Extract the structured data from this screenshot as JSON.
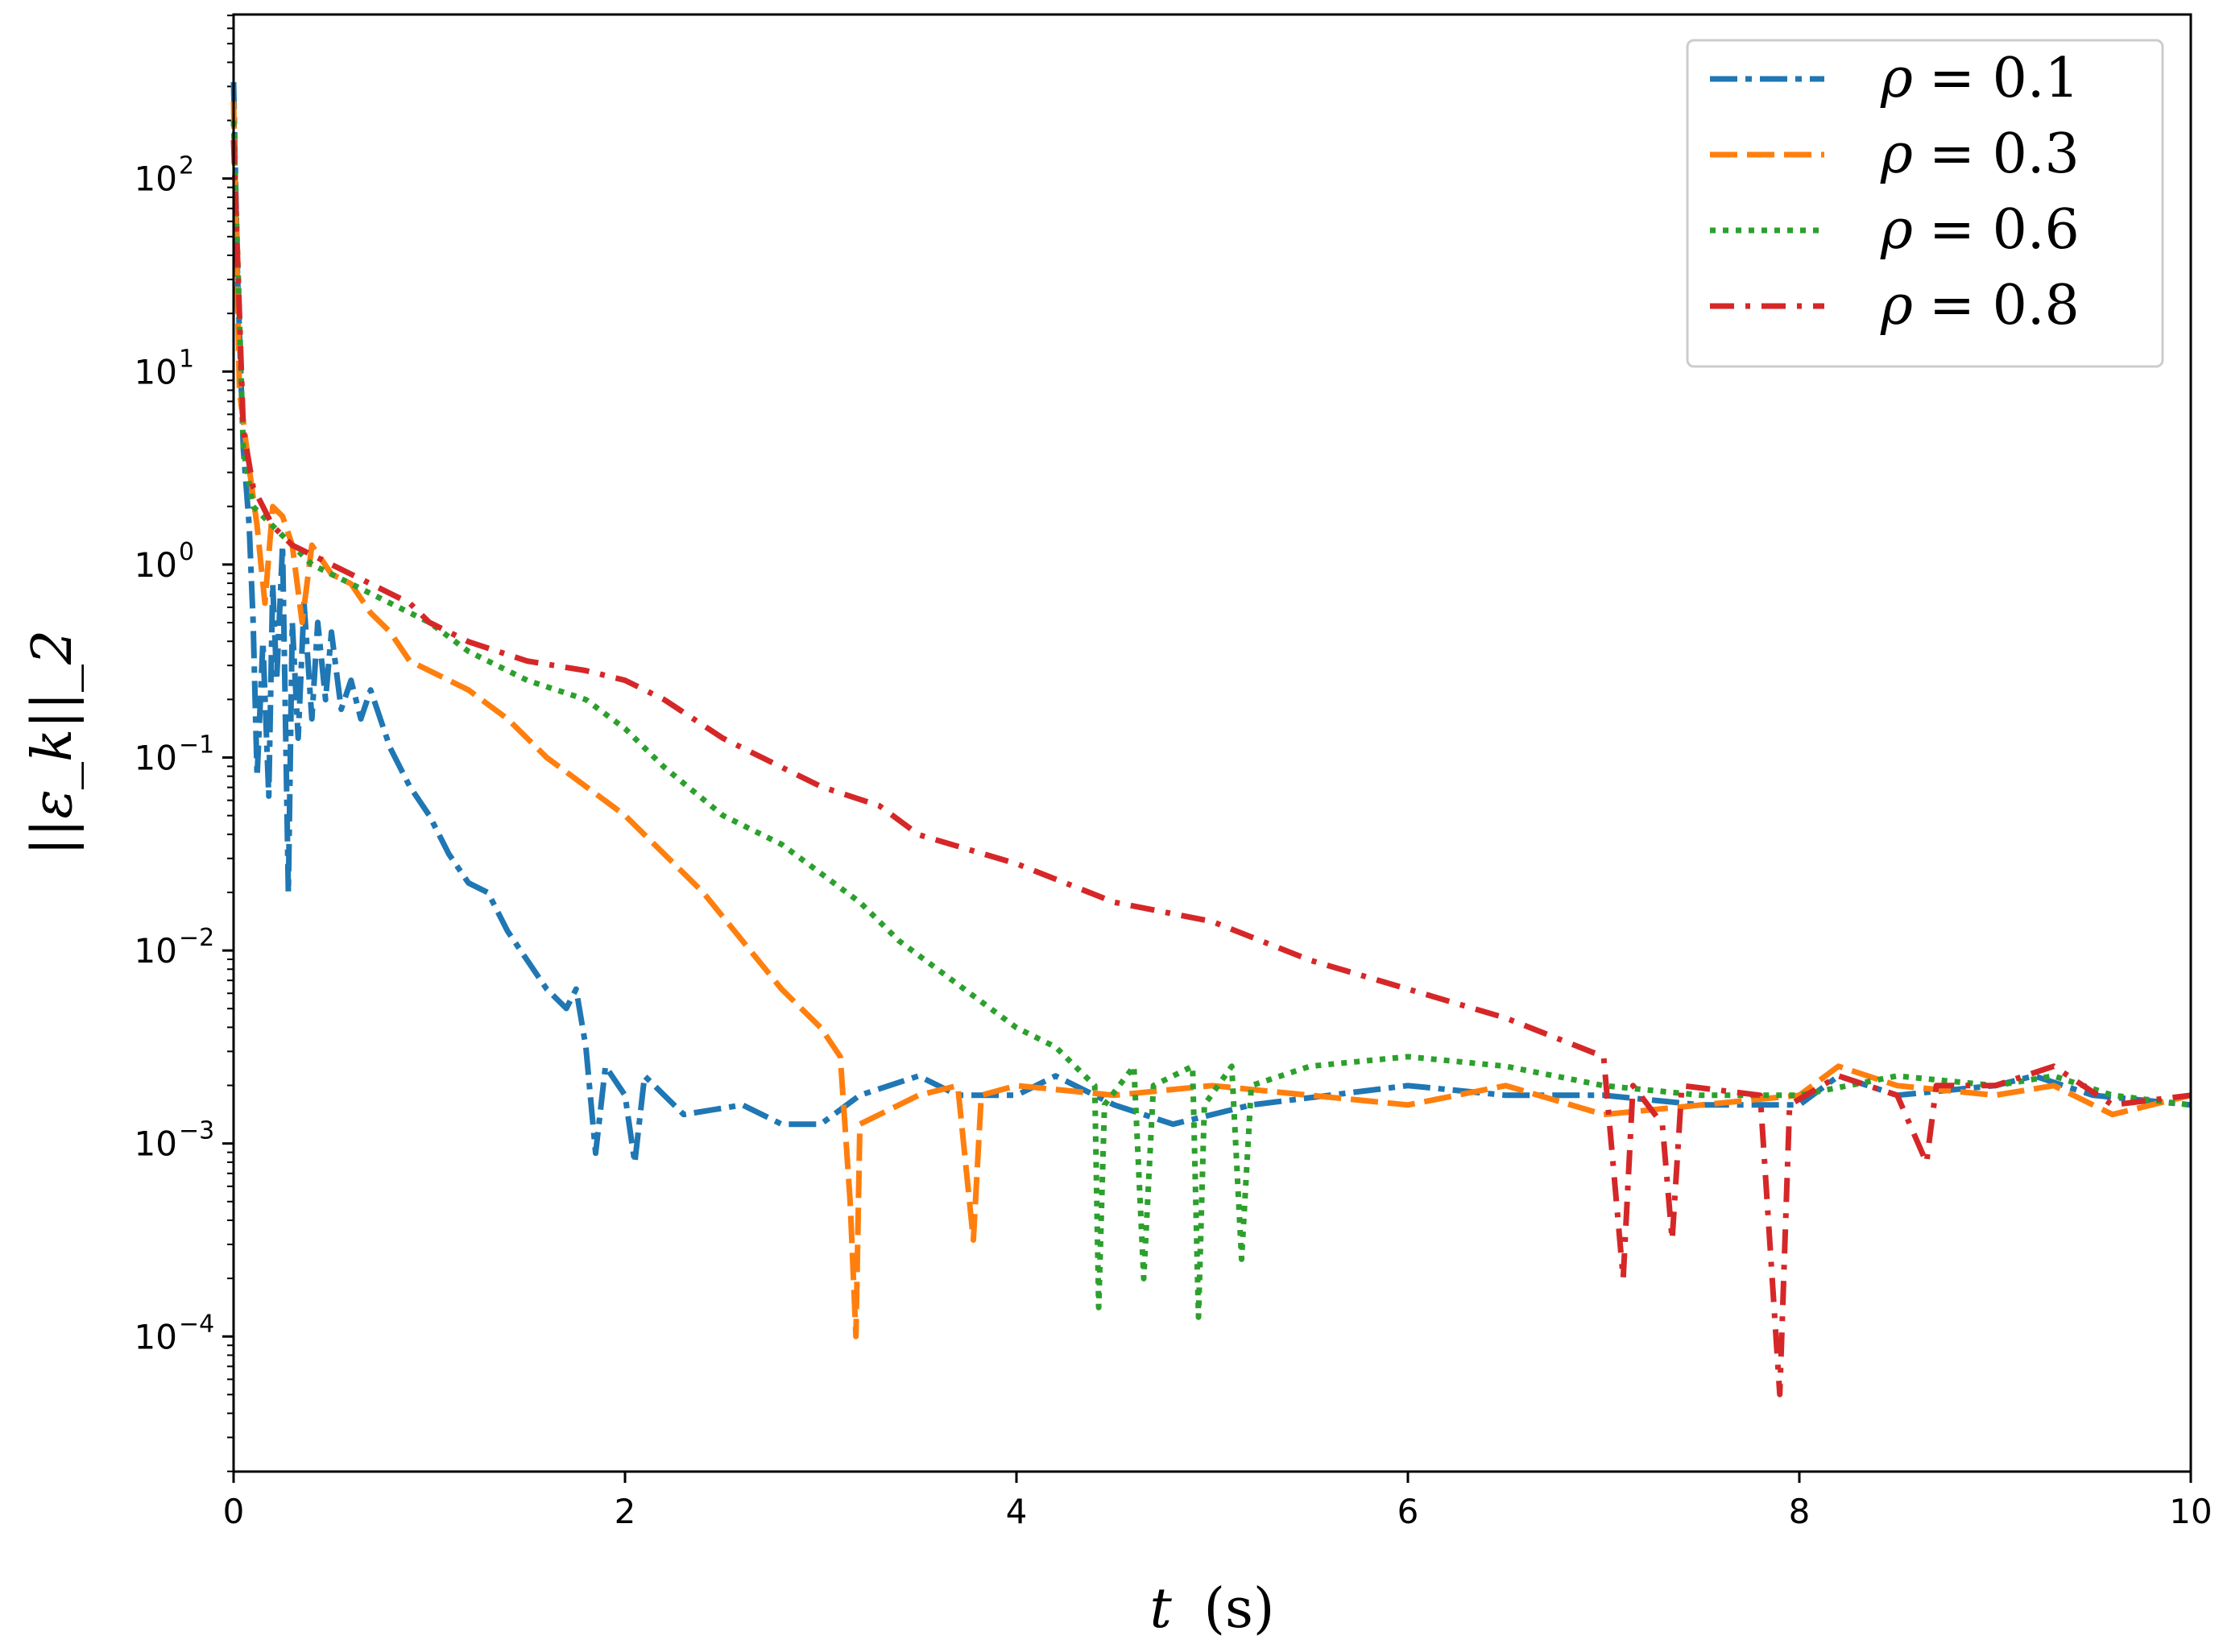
{
  "chart_data": {
    "type": "line",
    "title": "",
    "xlabel": "t (s)",
    "xlabel_var": "t",
    "xlabel_unit": "(s)",
    "ylabel": "||ε_k||_2",
    "yscale": "log",
    "xlim": [
      0,
      10
    ],
    "ylim_exp": [
      -4.7,
      2.85
    ],
    "x_ticks": [
      "0",
      "2",
      "4",
      "6",
      "8",
      "10"
    ],
    "y_ticks": [
      {
        "base": "10",
        "exp": "2"
      },
      {
        "base": "10",
        "exp": "1"
      },
      {
        "base": "10",
        "exp": "0"
      },
      {
        "base": "10",
        "exp": "−1"
      },
      {
        "base": "10",
        "exp": "−2"
      },
      {
        "base": "10",
        "exp": "−3"
      },
      {
        "base": "10",
        "exp": "−4"
      }
    ],
    "legend_position": "top-right",
    "series": [
      {
        "name": "ρ = 0.1",
        "legend_var": "ρ",
        "legend_value": "= 0.1",
        "color": "#1f77b4",
        "dash": "34 10 8 10",
        "points": [
          [
            0,
            2.5
          ],
          [
            0.02,
            1.5
          ],
          [
            0.05,
            0.6
          ],
          [
            0.08,
            0.2
          ],
          [
            0.1,
            -0.3
          ],
          [
            0.12,
            -1.1
          ],
          [
            0.15,
            -0.4
          ],
          [
            0.18,
            -1.2
          ],
          [
            0.2,
            -0.1
          ],
          [
            0.22,
            -0.6
          ],
          [
            0.25,
            0.1
          ],
          [
            0.28,
            -1.7
          ],
          [
            0.3,
            -0.3
          ],
          [
            0.33,
            -0.9
          ],
          [
            0.36,
            -0.2
          ],
          [
            0.4,
            -0.8
          ],
          [
            0.43,
            -0.3
          ],
          [
            0.47,
            -0.7
          ],
          [
            0.5,
            -0.35
          ],
          [
            0.55,
            -0.75
          ],
          [
            0.6,
            -0.6
          ],
          [
            0.65,
            -0.8
          ],
          [
            0.7,
            -0.65
          ],
          [
            0.8,
            -0.95
          ],
          [
            0.9,
            -1.15
          ],
          [
            1.0,
            -1.3
          ],
          [
            1.1,
            -1.5
          ],
          [
            1.2,
            -1.65
          ],
          [
            1.3,
            -1.7
          ],
          [
            1.4,
            -1.9
          ],
          [
            1.5,
            -2.05
          ],
          [
            1.6,
            -2.2
          ],
          [
            1.7,
            -2.3
          ],
          [
            1.75,
            -2.2
          ],
          [
            1.8,
            -2.5
          ],
          [
            1.85,
            -3.05
          ],
          [
            1.9,
            -2.6
          ],
          [
            2.0,
            -2.75
          ],
          [
            2.05,
            -3.1
          ],
          [
            2.1,
            -2.65
          ],
          [
            2.3,
            -2.85
          ],
          [
            2.6,
            -2.8
          ],
          [
            2.8,
            -2.9
          ],
          [
            3.0,
            -2.9
          ],
          [
            3.2,
            -2.75
          ],
          [
            3.5,
            -2.65
          ],
          [
            3.7,
            -2.75
          ],
          [
            4.0,
            -2.75
          ],
          [
            4.2,
            -2.65
          ],
          [
            4.5,
            -2.8
          ],
          [
            4.8,
            -2.9
          ],
          [
            5.2,
            -2.8
          ],
          [
            5.6,
            -2.75
          ],
          [
            6.0,
            -2.7
          ],
          [
            6.5,
            -2.75
          ],
          [
            7.0,
            -2.75
          ],
          [
            7.5,
            -2.8
          ],
          [
            8.0,
            -2.8
          ],
          [
            8.2,
            -2.65
          ],
          [
            8.5,
            -2.75
          ],
          [
            9.0,
            -2.7
          ],
          [
            9.2,
            -2.65
          ],
          [
            9.5,
            -2.75
          ],
          [
            10.0,
            -2.8
          ]
        ]
      },
      {
        "name": "ρ = 0.3",
        "legend_var": "ρ",
        "legend_value": "= 0.3",
        "color": "#ff7f0e",
        "dash": "34 12",
        "points": [
          [
            0,
            2.4
          ],
          [
            0.03,
            0.9
          ],
          [
            0.08,
            0.5
          ],
          [
            0.12,
            0.2
          ],
          [
            0.16,
            -0.2
          ],
          [
            0.2,
            0.3
          ],
          [
            0.25,
            0.25
          ],
          [
            0.3,
            0.1
          ],
          [
            0.35,
            -0.3
          ],
          [
            0.4,
            0.1
          ],
          [
            0.5,
            -0.05
          ],
          [
            0.6,
            -0.1
          ],
          [
            0.7,
            -0.25
          ],
          [
            0.8,
            -0.35
          ],
          [
            0.9,
            -0.5
          ],
          [
            1.0,
            -0.55
          ],
          [
            1.2,
            -0.65
          ],
          [
            1.4,
            -0.8
          ],
          [
            1.6,
            -1.0
          ],
          [
            1.8,
            -1.15
          ],
          [
            2.0,
            -1.3
          ],
          [
            2.2,
            -1.5
          ],
          [
            2.4,
            -1.7
          ],
          [
            2.6,
            -1.95
          ],
          [
            2.8,
            -2.2
          ],
          [
            3.0,
            -2.4
          ],
          [
            3.1,
            -2.55
          ],
          [
            3.15,
            -3.3
          ],
          [
            3.18,
            -4.0
          ],
          [
            3.2,
            -2.9
          ],
          [
            3.5,
            -2.75
          ],
          [
            3.7,
            -2.7
          ],
          [
            3.78,
            -3.5
          ],
          [
            3.82,
            -2.75
          ],
          [
            4.0,
            -2.7
          ],
          [
            4.5,
            -2.75
          ],
          [
            5.0,
            -2.7
          ],
          [
            5.5,
            -2.75
          ],
          [
            6.0,
            -2.8
          ],
          [
            6.5,
            -2.7
          ],
          [
            7.0,
            -2.85
          ],
          [
            7.5,
            -2.8
          ],
          [
            8.0,
            -2.75
          ],
          [
            8.2,
            -2.6
          ],
          [
            8.5,
            -2.7
          ],
          [
            9.0,
            -2.75
          ],
          [
            9.3,
            -2.7
          ],
          [
            9.6,
            -2.85
          ],
          [
            10.0,
            -2.75
          ]
        ]
      },
      {
        "name": "ρ = 0.6",
        "legend_var": "ρ",
        "legend_value": "= 0.6",
        "color": "#2ca02c",
        "dotted": true,
        "points": [
          [
            0,
            2.3
          ],
          [
            0.05,
            0.6
          ],
          [
            0.1,
            0.3
          ],
          [
            0.2,
            0.2
          ],
          [
            0.3,
            0.1
          ],
          [
            0.4,
            0.0
          ],
          [
            0.6,
            -0.1
          ],
          [
            0.8,
            -0.2
          ],
          [
            1.0,
            -0.3
          ],
          [
            1.2,
            -0.45
          ],
          [
            1.5,
            -0.6
          ],
          [
            1.8,
            -0.7
          ],
          [
            2.0,
            -0.85
          ],
          [
            2.2,
            -1.05
          ],
          [
            2.5,
            -1.3
          ],
          [
            2.8,
            -1.45
          ],
          [
            3.0,
            -1.6
          ],
          [
            3.2,
            -1.75
          ],
          [
            3.4,
            -1.95
          ],
          [
            3.6,
            -2.1
          ],
          [
            3.8,
            -2.25
          ],
          [
            4.0,
            -2.4
          ],
          [
            4.2,
            -2.5
          ],
          [
            4.4,
            -2.7
          ],
          [
            4.42,
            -3.85
          ],
          [
            4.45,
            -2.8
          ],
          [
            4.6,
            -2.6
          ],
          [
            4.65,
            -3.7
          ],
          [
            4.7,
            -2.7
          ],
          [
            4.9,
            -2.6
          ],
          [
            4.93,
            -3.9
          ],
          [
            4.96,
            -2.8
          ],
          [
            5.1,
            -2.6
          ],
          [
            5.15,
            -3.6
          ],
          [
            5.2,
            -2.7
          ],
          [
            5.5,
            -2.6
          ],
          [
            6.0,
            -2.55
          ],
          [
            6.5,
            -2.6
          ],
          [
            7.0,
            -2.7
          ],
          [
            7.5,
            -2.75
          ],
          [
            8.0,
            -2.75
          ],
          [
            8.5,
            -2.65
          ],
          [
            9.0,
            -2.7
          ],
          [
            9.3,
            -2.65
          ],
          [
            9.6,
            -2.75
          ],
          [
            10.0,
            -2.8
          ]
        ]
      },
      {
        "name": "ρ = 0.8",
        "legend_var": "ρ",
        "legend_value": "= 0.8",
        "color": "#d62728",
        "dash": "30 14 6 14",
        "points": [
          [
            0,
            2.2
          ],
          [
            0.05,
            0.7
          ],
          [
            0.1,
            0.4
          ],
          [
            0.2,
            0.2
          ],
          [
            0.3,
            0.1
          ],
          [
            0.5,
            0.0
          ],
          [
            0.7,
            -0.1
          ],
          [
            0.9,
            -0.2
          ],
          [
            1.0,
            -0.3
          ],
          [
            1.2,
            -0.4
          ],
          [
            1.5,
            -0.5
          ],
          [
            1.8,
            -0.55
          ],
          [
            2.0,
            -0.6
          ],
          [
            2.2,
            -0.7
          ],
          [
            2.5,
            -0.9
          ],
          [
            2.8,
            -1.05
          ],
          [
            3.0,
            -1.15
          ],
          [
            3.3,
            -1.25
          ],
          [
            3.5,
            -1.4
          ],
          [
            4.0,
            -1.55
          ],
          [
            4.5,
            -1.75
          ],
          [
            5.0,
            -1.85
          ],
          [
            5.5,
            -2.05
          ],
          [
            6.0,
            -2.2
          ],
          [
            6.5,
            -2.35
          ],
          [
            7.0,
            -2.55
          ],
          [
            7.1,
            -3.7
          ],
          [
            7.15,
            -2.7
          ],
          [
            7.3,
            -2.9
          ],
          [
            7.35,
            -3.5
          ],
          [
            7.4,
            -2.7
          ],
          [
            7.8,
            -2.75
          ],
          [
            7.9,
            -4.3
          ],
          [
            7.95,
            -2.8
          ],
          [
            8.2,
            -2.65
          ],
          [
            8.5,
            -2.75
          ],
          [
            8.65,
            -3.1
          ],
          [
            8.7,
            -2.7
          ],
          [
            9.0,
            -2.7
          ],
          [
            9.3,
            -2.6
          ],
          [
            9.6,
            -2.8
          ],
          [
            10.0,
            -2.75
          ]
        ]
      }
    ]
  }
}
